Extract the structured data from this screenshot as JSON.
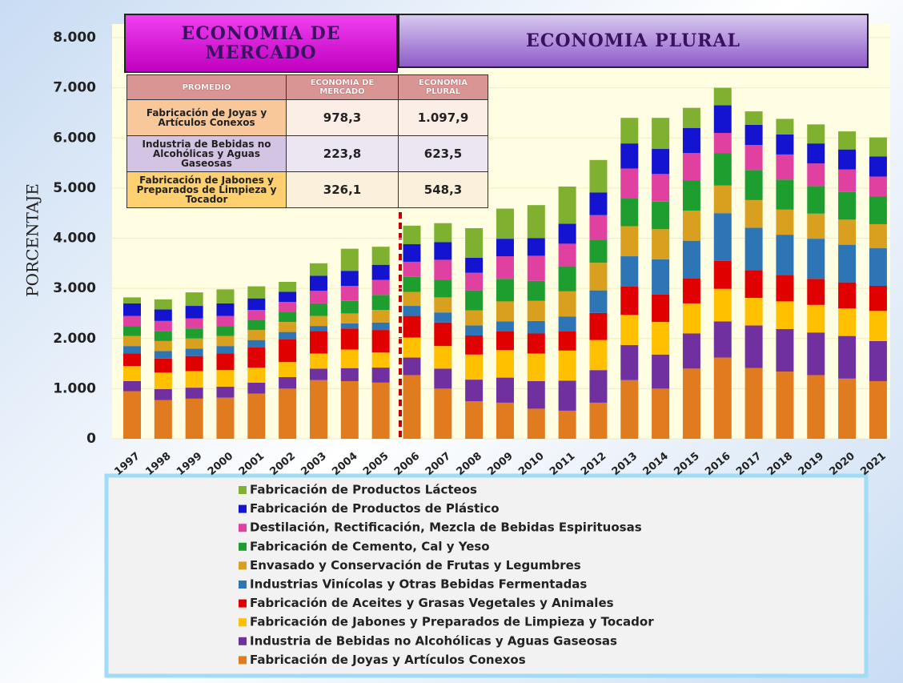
{
  "banners": [
    "ECONOMIA DE MERCADO",
    "ECONOMIA PLURAL"
  ],
  "table": {
    "header": [
      "PROMEDIO",
      "ECONOMIA DE MERCADO",
      "ECONOMIA PLURAL"
    ],
    "rows": [
      [
        "Fabricación de Joyas y Artículos Conexos",
        "978,3",
        "1.097,9"
      ],
      [
        "Industria de Bebidas no Alcohólicas y Aguas Gaseosas",
        "223,8",
        "623,5"
      ],
      [
        "Fabricación de Jabones y Preparados de Limpieza y Tocador",
        "326,1",
        "548,3"
      ]
    ]
  },
  "chart_data": {
    "type": "stacked_bar",
    "ylabel": "PORCENTAJE",
    "categories": [
      "1997",
      "1998",
      "1999",
      "2000",
      "2001",
      "2002",
      "2003",
      "2004",
      "2005",
      "2006",
      "2007",
      "2008",
      "2009",
      "2010",
      "2011",
      "2012",
      "2013",
      "2014",
      "2015",
      "2016",
      "2017",
      "2018",
      "2019",
      "2020",
      "2021"
    ],
    "ylim": [
      0,
      8000
    ],
    "yticks": [
      0,
      {
        "value": 1000,
        "label": "1.000"
      },
      {
        "value": 2000,
        "label": "2.000"
      },
      {
        "value": 3000,
        "label": "3.000"
      },
      {
        "value": 4000,
        "label": "4.000"
      },
      {
        "value": 5000,
        "label": "5.000"
      },
      {
        "value": 6000,
        "label": "6.000"
      },
      {
        "value": 7000,
        "label": "7.000"
      },
      {
        "value": 8000,
        "label": "8.000"
      }
    ],
    "grid": true,
    "series": [
      {
        "name": "Fabricación de Joyas y Artículos Conexos",
        "color": "#e07b20",
        "values": [
          950,
          770,
          800,
          820,
          900,
          1000,
          1170,
          1150,
          1120,
          1270,
          1000,
          750,
          720,
          600,
          560,
          720,
          1170,
          1000,
          1400,
          1620,
          1410,
          1340,
          1270,
          1200,
          1150
        ]
      },
      {
        "name": "Industria de Bebidas no Alcohólicas y Aguas Gaseosas",
        "color": "#7030a0",
        "values": [
          200,
          220,
          220,
          220,
          220,
          230,
          230,
          260,
          300,
          350,
          400,
          430,
          500,
          550,
          600,
          650,
          700,
          680,
          700,
          720,
          850,
          850,
          850,
          850,
          800
        ]
      },
      {
        "name": "Fabricación de Jabones y Preparados de Limpieza y Tocador",
        "color": "#ffc000",
        "values": [
          300,
          330,
          330,
          330,
          300,
          300,
          300,
          370,
          300,
          400,
          450,
          500,
          550,
          550,
          600,
          600,
          600,
          650,
          600,
          650,
          550,
          550,
          550,
          550,
          600
        ]
      },
      {
        "name": "Fabricación de Aceites y Grasas Vegetales y Animales",
        "color": "#e00000",
        "values": [
          250,
          280,
          300,
          330,
          400,
          450,
          450,
          420,
          450,
          430,
          470,
          380,
          370,
          400,
          380,
          540,
          570,
          550,
          500,
          560,
          550,
          530,
          520,
          520,
          500
        ]
      },
      {
        "name": "Industrias Vinícolas y Otras Bebidas Fermentadas",
        "color": "#2e75b6",
        "values": [
          150,
          150,
          150,
          150,
          150,
          150,
          100,
          100,
          150,
          200,
          200,
          200,
          200,
          250,
          300,
          450,
          600,
          700,
          750,
          950,
          850,
          800,
          800,
          750,
          750
        ]
      },
      {
        "name": "Envasado y Conservación de Frutas y Legumbres",
        "color": "#d9a020",
        "values": [
          200,
          200,
          200,
          200,
          200,
          200,
          200,
          200,
          250,
          280,
          300,
          300,
          400,
          400,
          500,
          550,
          600,
          600,
          600,
          550,
          550,
          500,
          500,
          500,
          480
        ]
      },
      {
        "name": "Fabricación de Cemento, Cal y Yeso",
        "color": "#1e9e2e",
        "values": [
          200,
          200,
          200,
          200,
          200,
          200,
          250,
          250,
          300,
          300,
          350,
          400,
          450,
          400,
          500,
          450,
          550,
          550,
          600,
          650,
          600,
          600,
          550,
          550,
          550
        ]
      },
      {
        "name": "Destilación, Rectificación, Mezcla de Bebidas Espirituosas",
        "color": "#e040a0",
        "values": [
          200,
          200,
          200,
          200,
          200,
          200,
          250,
          300,
          300,
          300,
          400,
          350,
          450,
          500,
          450,
          500,
          600,
          550,
          550,
          400,
          500,
          500,
          450,
          450,
          400
        ]
      },
      {
        "name": "Fabricación de Productos de Plástico",
        "color": "#1414d0",
        "values": [
          250,
          230,
          250,
          250,
          230,
          200,
          300,
          300,
          300,
          350,
          350,
          300,
          350,
          350,
          400,
          450,
          500,
          500,
          500,
          550,
          400,
          400,
          400,
          400,
          400
        ]
      },
      {
        "name": "Fabricación de Productos Lácteos",
        "color": "#80b030",
        "values": [
          120,
          200,
          270,
          280,
          240,
          200,
          250,
          440,
          360,
          370,
          380,
          590,
          600,
          660,
          740,
          650,
          510,
          620,
          400,
          350,
          270,
          310,
          380,
          360,
          380
        ]
      }
    ]
  }
}
